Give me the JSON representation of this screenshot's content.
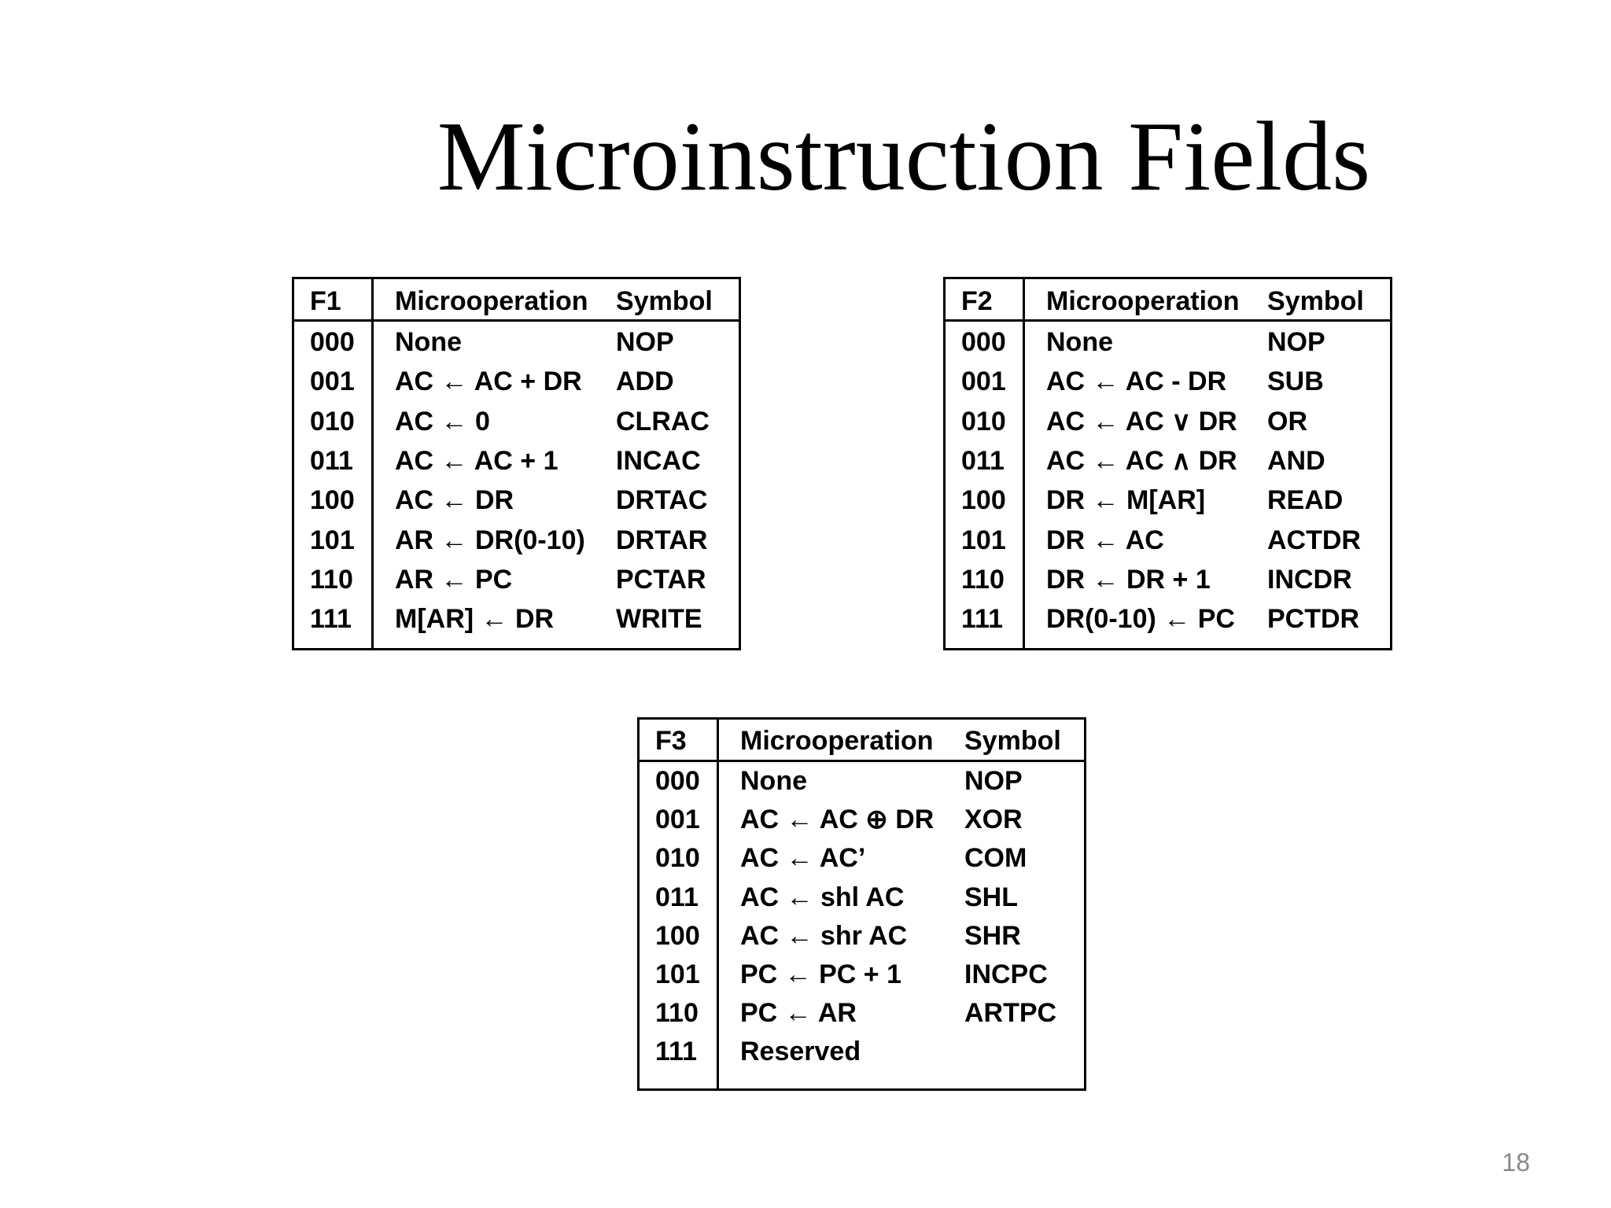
{
  "title": "Microinstruction Fields",
  "page_number": "18",
  "tables": [
    {
      "id": "f1",
      "headers": {
        "code": "F1",
        "op": "Microoperation",
        "sym": "Symbol"
      },
      "rows": [
        {
          "code": "000",
          "op": "None",
          "sym": "NOP"
        },
        {
          "code": "001",
          "op": "AC ← AC + DR",
          "sym": "ADD"
        },
        {
          "code": "010",
          "op": "AC ← 0",
          "sym": "CLRAC"
        },
        {
          "code": "011",
          "op": "AC ← AC + 1",
          "sym": "INCAC"
        },
        {
          "code": "100",
          "op": "AC ← DR",
          "sym": "DRTAC"
        },
        {
          "code": "101",
          "op": "AR ← DR(0-10)",
          "sym": "DRTAR"
        },
        {
          "code": "110",
          "op": "AR ← PC",
          "sym": "PCTAR"
        },
        {
          "code": "111",
          "op": "M[AR] ← DR",
          "sym": "WRITE"
        }
      ]
    },
    {
      "id": "f2",
      "headers": {
        "code": "F2",
        "op": "Microoperation",
        "sym": "Symbol"
      },
      "rows": [
        {
          "code": "000",
          "op": "None",
          "sym": "NOP"
        },
        {
          "code": "001",
          "op": "AC ← AC - DR",
          "sym": "SUB"
        },
        {
          "code": "010",
          "op": "AC ← AC ∨ DR",
          "sym": "OR"
        },
        {
          "code": "011",
          "op": "AC ← AC ∧ DR",
          "sym": "AND"
        },
        {
          "code": "100",
          "op": "DR ← M[AR]",
          "sym": "READ"
        },
        {
          "code": "101",
          "op": "DR ← AC",
          "sym": "ACTDR"
        },
        {
          "code": "110",
          "op": "DR ← DR + 1",
          "sym": "INCDR"
        },
        {
          "code": "111",
          "op": "DR(0-10) ← PC",
          "sym": "PCTDR"
        }
      ]
    },
    {
      "id": "f3",
      "headers": {
        "code": "F3",
        "op": "Microoperation",
        "sym": "Symbol"
      },
      "rows": [
        {
          "code": "000",
          "op": "None",
          "sym": "NOP"
        },
        {
          "code": "001",
          "op": "AC ← AC ⊕ DR",
          "sym": "XOR"
        },
        {
          "code": "010",
          "op": "AC ← AC’",
          "sym": "COM"
        },
        {
          "code": "011",
          "op": "AC ← shl AC",
          "sym": "SHL"
        },
        {
          "code": "100",
          "op": "AC ← shr AC",
          "sym": "SHR"
        },
        {
          "code": "101",
          "op": "PC ← PC + 1",
          "sym": "INCPC"
        },
        {
          "code": "110",
          "op": "PC ← AR",
          "sym": "ARTPC"
        },
        {
          "code": "111",
          "op": "Reserved",
          "sym": ""
        }
      ]
    }
  ]
}
